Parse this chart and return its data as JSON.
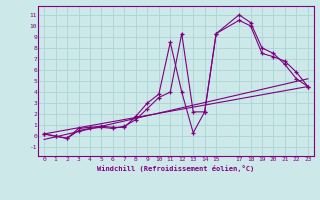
{
  "xlabel": "Windchill (Refroidissement éolien,°C)",
  "bg_color": "#cce8e8",
  "line_color": "#800080",
  "grid_color": "#aad4d4",
  "xlim": [
    -0.5,
    23.5
  ],
  "ylim": [
    -1.8,
    11.8
  ],
  "xticks": [
    0,
    1,
    2,
    3,
    4,
    5,
    6,
    7,
    8,
    9,
    10,
    11,
    12,
    13,
    14,
    15,
    17,
    18,
    19,
    20,
    21,
    22,
    23
  ],
  "yticks": [
    -1,
    0,
    1,
    2,
    3,
    4,
    5,
    6,
    7,
    8,
    9,
    10,
    11
  ],
  "series1_x": [
    0,
    1,
    2,
    3,
    4,
    5,
    6,
    7,
    8,
    9,
    10,
    11,
    12,
    13,
    14,
    15,
    17,
    18,
    19,
    20,
    21,
    22,
    23
  ],
  "series1_y": [
    0.2,
    0.0,
    -0.2,
    0.7,
    0.8,
    0.9,
    0.8,
    0.8,
    1.8,
    3.0,
    3.8,
    8.5,
    4.0,
    0.3,
    2.2,
    9.3,
    11.0,
    10.3,
    8.0,
    7.5,
    6.5,
    5.2,
    4.5
  ],
  "series2_x": [
    0,
    1,
    2,
    3,
    4,
    5,
    6,
    7,
    8,
    9,
    10,
    11,
    12,
    13,
    14,
    15,
    17,
    18,
    19,
    20,
    21,
    22,
    23
  ],
  "series2_y": [
    0.2,
    0.0,
    -0.2,
    0.5,
    0.7,
    0.8,
    0.7,
    0.9,
    1.5,
    2.5,
    3.5,
    4.0,
    9.3,
    2.2,
    2.2,
    9.3,
    10.5,
    10.0,
    7.5,
    7.2,
    6.8,
    5.8,
    4.5
  ],
  "series3_x": [
    0,
    23
  ],
  "series3_y": [
    0.2,
    4.5
  ],
  "series4_x": [
    0,
    23
  ],
  "series4_y": [
    -0.3,
    5.2
  ]
}
